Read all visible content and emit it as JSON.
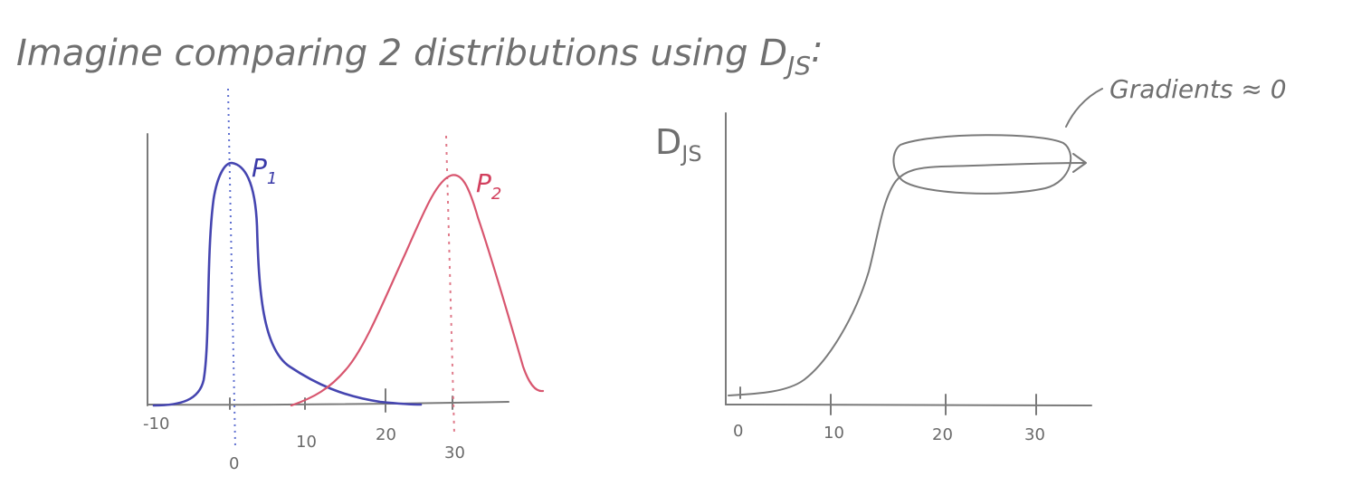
{
  "title": "Imagine comparing 2 distributions using D",
  "title_subscript": "JS",
  "title_suffix": ":",
  "left_plot": {
    "p1_label": "P",
    "p1_subscript": "1",
    "p2_label": "P",
    "p2_subscript": "2",
    "x_ticks": [
      "-10",
      "0",
      "10",
      "20",
      "30"
    ],
    "colors": {
      "p1": "#4545b0",
      "p2": "#d8566f"
    }
  },
  "right_plot": {
    "y_label": "D",
    "y_label_subscript": "JS",
    "x_ticks": [
      "0",
      "10",
      "20",
      "30"
    ],
    "annotation": "Gradients ≈ 0"
  }
}
